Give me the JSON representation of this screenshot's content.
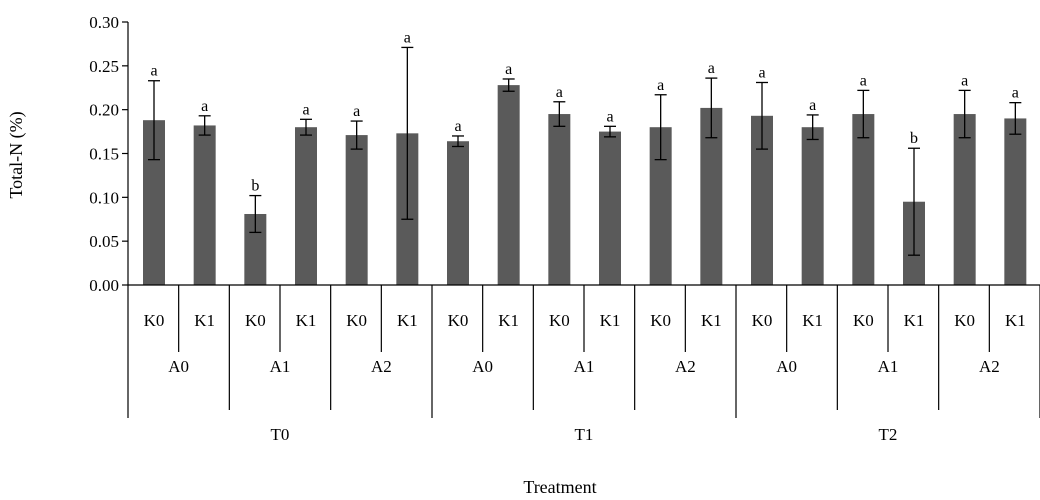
{
  "chart_data": {
    "type": "bar",
    "ylabel": "Total-N (%)",
    "xlabel": "Treatment",
    "ylim": [
      0,
      0.3
    ],
    "y_ticks": [
      "0.00",
      "0.05",
      "0.10",
      "0.15",
      "0.20",
      "0.25",
      "0.30"
    ],
    "y_tick_values": [
      0,
      0.05,
      0.1,
      0.15,
      0.2,
      0.25,
      0.3
    ],
    "grid": false,
    "bar_color": "#5a5a5a",
    "categories_level1": [
      "K0",
      "K1",
      "K0",
      "K1",
      "K0",
      "K1",
      "K0",
      "K1",
      "K0",
      "K1",
      "K0",
      "K1",
      "K0",
      "K1",
      "K0",
      "K1",
      "K0",
      "K1"
    ],
    "categories_level2": [
      "A0",
      "A1",
      "A2",
      "A0",
      "A1",
      "A2",
      "A0",
      "A1",
      "A2"
    ],
    "categories_level3": [
      "T0",
      "T1",
      "T2"
    ],
    "values": [
      0.188,
      0.182,
      0.081,
      0.18,
      0.171,
      0.173,
      0.164,
      0.228,
      0.195,
      0.175,
      0.18,
      0.202,
      0.193,
      0.18,
      0.195,
      0.095,
      0.195,
      0.19
    ],
    "errors": [
      0.045,
      0.011,
      0.021,
      0.009,
      0.016,
      0.098,
      0.006,
      0.007,
      0.014,
      0.006,
      0.037,
      0.034,
      0.038,
      0.014,
      0.027,
      0.061,
      0.027,
      0.018
    ],
    "significance": [
      "a",
      "a",
      "b",
      "a",
      "a",
      "a",
      "a",
      "a",
      "a",
      "a",
      "a",
      "a",
      "a",
      "a",
      "a",
      "b",
      "a",
      "a"
    ]
  }
}
